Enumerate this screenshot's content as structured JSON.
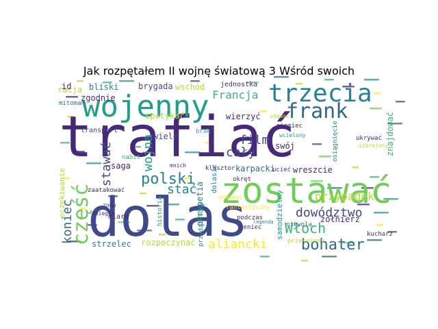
{
  "title": "Jak rozpętałem II wojnę światową 3 Wśród swoich",
  "colors": {
    "dark_purple": "#440154",
    "indigo": "#482878",
    "navy": "#3e4a89",
    "blue": "#31688e",
    "teal": "#26828e",
    "green_teal": "#1f9e89",
    "green": "#35b779",
    "light_green": "#6ece58",
    "lime": "#b5de2b",
    "yellow": "#fde725"
  },
  "words": [
    {
      "text": "trafiać",
      "color": "indigo"
    },
    {
      "text": "dolas",
      "color": "navy"
    },
    {
      "text": "zostawać",
      "color": "light_green"
    },
    {
      "text": "wojenny",
      "color": "green_teal"
    },
    {
      "text": "trzecia",
      "color": "teal"
    },
    {
      "text": "frank",
      "color": "blue"
    },
    {
      "text": "część",
      "color": "light_green"
    },
    {
      "text": "polski",
      "color": "teal"
    },
    {
      "text": "bohater",
      "color": "blue"
    },
    {
      "text": "Francja",
      "color": "green"
    },
    {
      "text": "dowództwo",
      "color": "navy"
    },
    {
      "text": "przypadek",
      "color": "lime"
    },
    {
      "text": "Włoch",
      "color": "green"
    },
    {
      "text": "aliancki",
      "color": "yellow"
    },
    {
      "text": "koniec",
      "color": "blue"
    },
    {
      "text": "stawać",
      "color": "navy"
    },
    {
      "text": "wojna",
      "color": "green_teal"
    },
    {
      "text": "film",
      "color": "navy"
    },
    {
      "text": "cały",
      "color": "navy"
    },
    {
      "text": "stać",
      "color": "teal"
    },
    {
      "text": "spotykać",
      "color": "lime"
    },
    {
      "text": "wierzyć",
      "color": "indigo"
    },
    {
      "text": "wiele",
      "color": "navy"
    },
    {
      "text": "zgodnie",
      "color": "indigo"
    },
    {
      "text": "bliski",
      "color": "teal"
    },
    {
      "text": "brygada",
      "color": "navy"
    },
    {
      "text": "wschód",
      "color": "lime"
    },
    {
      "text": "strzelec",
      "color": "teal"
    },
    {
      "text": "rozpoczynać",
      "color": "lime"
    },
    {
      "text": "saga",
      "color": "indigo"
    },
    {
      "text": "swój",
      "color": "indigo"
    },
    {
      "text": "karpacki",
      "color": "blue"
    },
    {
      "text": "wreszcie",
      "color": "indigo"
    },
    {
      "text": "perypetia",
      "color": "teal"
    },
    {
      "text": "oczekiwanie",
      "color": "lime"
    },
    {
      "text": "fantastyczny",
      "color": "yellow"
    },
    {
      "text": "żołnierz",
      "color": "indigo"
    },
    {
      "text": "samodzielny",
      "color": "green_teal"
    },
    {
      "text": "znajdować",
      "color": "green"
    },
    {
      "text": "transport",
      "color": "navy"
    },
    {
      "text": "miara",
      "color": "indigo"
    },
    {
      "text": "jednostka",
      "color": "indigo"
    },
    {
      "text": "kucharz",
      "color": "indigo"
    },
    {
      "text": "podczas",
      "color": "indigo"
    },
    {
      "text": "jeniec",
      "color": "indigo"
    },
    {
      "text": "ucieć",
      "color": "indigo"
    },
    {
      "text": "niewola",
      "color": "blue"
    },
    {
      "text": "zaatakować",
      "color": "indigo"
    },
    {
      "text": "mitoman",
      "color": "blue"
    },
    {
      "text": "racja",
      "color": "lime"
    },
    {
      "text": "id",
      "color": "indigo"
    },
    {
      "text": "klasztor",
      "color": "indigo"
    },
    {
      "text": "okręt",
      "color": "indigo"
    },
    {
      "text": "mnich",
      "color": "indigo"
    },
    {
      "text": "wcielony",
      "color": "green_teal"
    },
    {
      "text": "udawać",
      "color": "lime"
    },
    {
      "text": "ukrywać",
      "color": "indigo"
    },
    {
      "text": "osiągnięcie",
      "color": "teal"
    },
    {
      "text": "uzbrojony",
      "color": "lime"
    },
    {
      "text": "przełożony",
      "color": "lime"
    },
    {
      "text": "historia",
      "color": "green_teal"
    },
    {
      "text": "przydzielony",
      "color": "teal"
    },
    {
      "text": "dolasie",
      "color": "teal"
    },
    {
      "text": "brak",
      "color": "green"
    },
    {
      "text": "nabit",
      "color": "green"
    },
    {
      "text": "zbiegła",
      "color": "indigo"
    },
    {
      "text": "znów",
      "color": "indigo"
    },
    {
      "text": "legenda",
      "color": "teal"
    },
    {
      "text": "niemiec",
      "color": "indigo"
    },
    {
      "text": "pomagać",
      "color": "yellow"
    }
  ]
}
